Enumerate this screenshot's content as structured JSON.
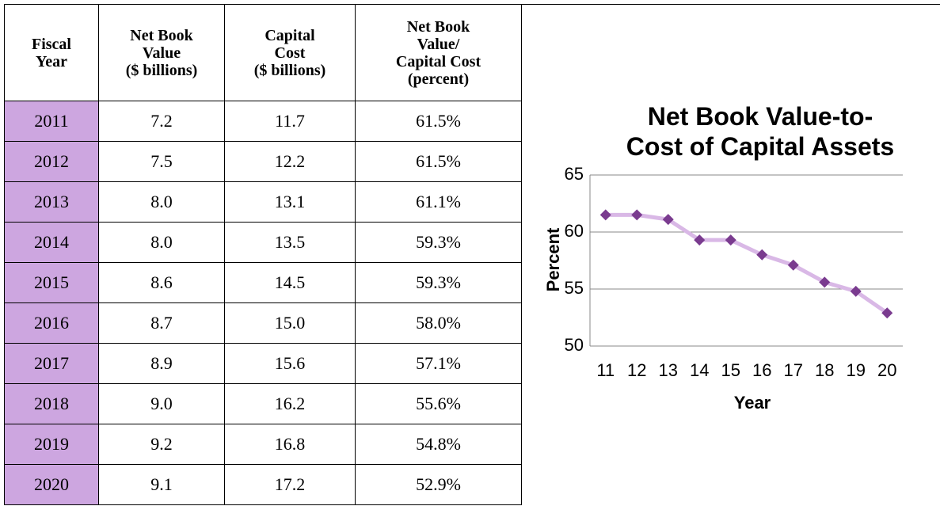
{
  "table": {
    "headers": [
      [
        "Fiscal",
        "Year"
      ],
      [
        "Net Book",
        "Value",
        "($ billions)"
      ],
      [
        "Capital",
        "Cost",
        "($ billions)"
      ],
      [
        "Net Book",
        "Value/",
        "Capital Cost",
        "(percent)"
      ]
    ],
    "rows": [
      [
        "2011",
        "7.2",
        "11.7",
        "61.5%"
      ],
      [
        "2012",
        "7.5",
        "12.2",
        "61.5%"
      ],
      [
        "2013",
        "8.0",
        "13.1",
        "61.1%"
      ],
      [
        "2014",
        "8.0",
        "13.5",
        "59.3%"
      ],
      [
        "2015",
        "8.6",
        "14.5",
        "59.3%"
      ],
      [
        "2016",
        "8.7",
        "15.0",
        "58.0%"
      ],
      [
        "2017",
        "8.9",
        "15.6",
        "57.1%"
      ],
      [
        "2018",
        "9.0",
        "16.2",
        "55.6%"
      ],
      [
        "2019",
        "9.2",
        "16.8",
        "54.8%"
      ],
      [
        "2020",
        "9.1",
        "17.2",
        "52.9%"
      ]
    ]
  },
  "chart_data": {
    "type": "line",
    "title": "Net Book Value-to-\nCost of Capital Assets",
    "x_label": "Year",
    "y_label": "Percent",
    "categories": [
      "11",
      "12",
      "13",
      "14",
      "15",
      "16",
      "17",
      "18",
      "19",
      "20"
    ],
    "values": [
      61.5,
      61.5,
      61.1,
      59.3,
      59.3,
      58.0,
      57.1,
      55.6,
      54.8,
      52.9
    ],
    "color": "#d9b8e6",
    "marker_color": "#7a3b8f",
    "ylim": [
      50,
      65
    ],
    "yticks": [
      50,
      55,
      60,
      65
    ],
    "grid": true
  }
}
